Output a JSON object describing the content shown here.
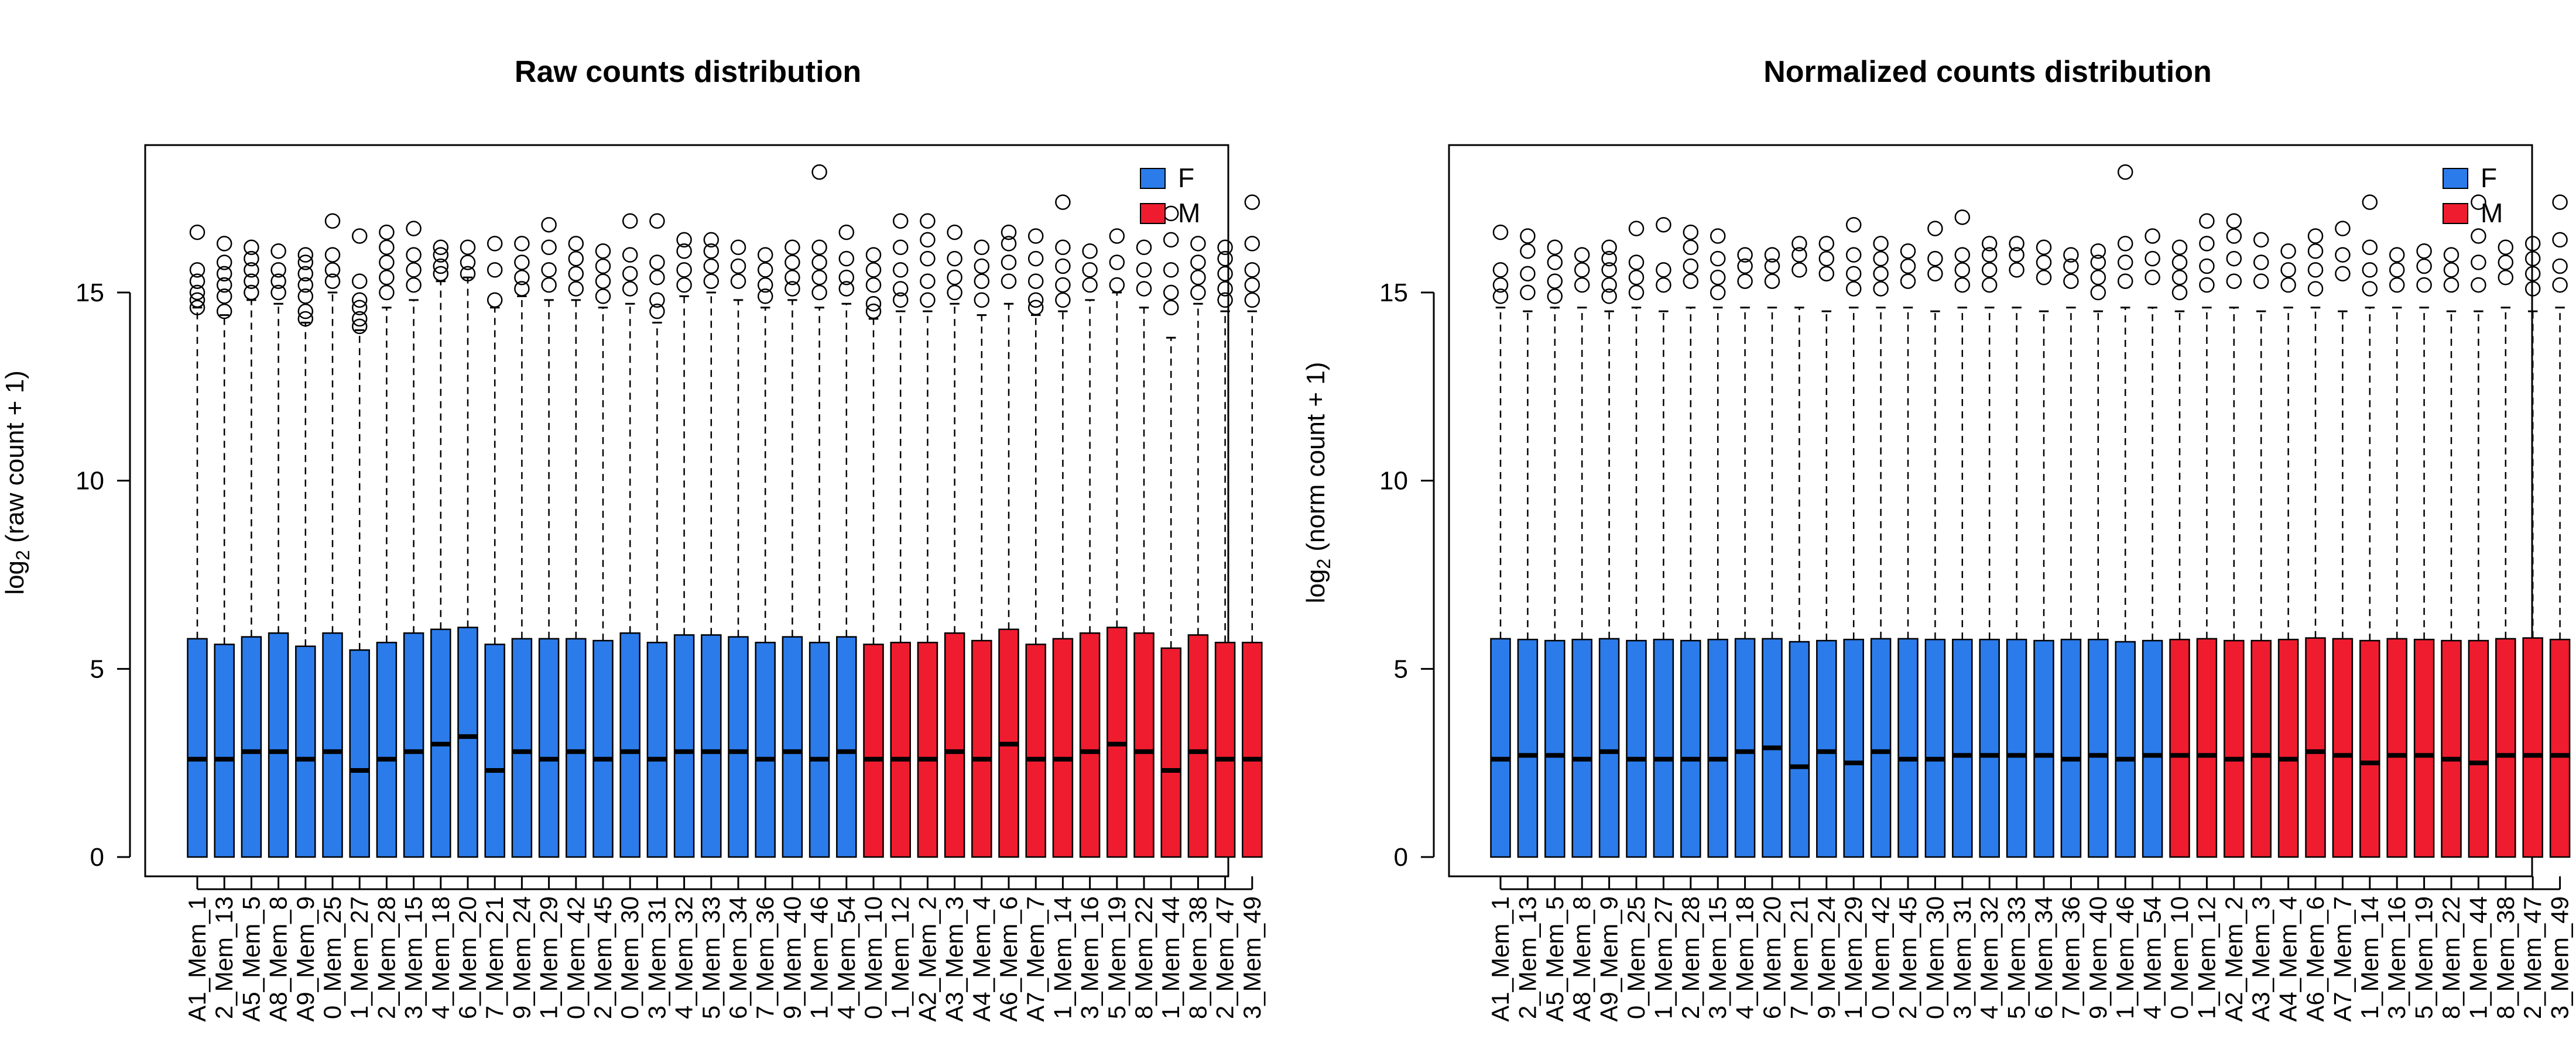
{
  "figure": {
    "panels": 2,
    "groups": [
      {
        "name": "F",
        "color": "#2b7bea"
      },
      {
        "name": "M",
        "color": "#ee1c2e"
      }
    ]
  },
  "chart_data": [
    {
      "type": "box",
      "title": "Raw counts distribution",
      "ylabel": "log2 (raw count + 1)",
      "ylabel_base": "log",
      "ylabel_sub": "2",
      "ylabel_rest": " (raw count + 1)",
      "ylim": [
        0,
        18.7
      ],
      "yticks": [
        0,
        5,
        10,
        15
      ],
      "grid": false,
      "legend": {
        "position": "top-right",
        "entries": [
          "F",
          "M"
        ]
      },
      "categories": [
        "A1_Mem_1",
        "2_Mem_13",
        "A5_Mem_5",
        "A8_Mem_8",
        "A9_Mem_9",
        "0_Mem_25",
        "1_Mem_27",
        "2_Mem_28",
        "3_Mem_15",
        "4_Mem_18",
        "6_Mem_20",
        "7_Mem_21",
        "9_Mem_24",
        "1_Mem_29",
        "0_Mem_42",
        "2_Mem_45",
        "0_Mem_30",
        "3_Mem_31",
        "4_Mem_32",
        "5_Mem_33",
        "6_Mem_34",
        "7_Mem_36",
        "9_Mem_40",
        "1_Mem_46",
        "4_Mem_54",
        "0_Mem_10",
        "1_Mem_12",
        "A2_Mem_2",
        "A3_Mem_3",
        "A4_Mem_4",
        "A6_Mem_6",
        "A7_Mem_7",
        "1_Mem_14",
        "3_Mem_16",
        "5_Mem_19",
        "8_Mem_22",
        "1_Mem_44",
        "8_Mem_38",
        "2_Mem_47",
        "3_Mem_49"
      ],
      "groups": [
        "F",
        "F",
        "F",
        "F",
        "F",
        "F",
        "F",
        "F",
        "F",
        "F",
        "F",
        "F",
        "F",
        "F",
        "F",
        "F",
        "F",
        "F",
        "F",
        "F",
        "F",
        "F",
        "F",
        "F",
        "F",
        "M",
        "M",
        "M",
        "M",
        "M",
        "M",
        "M",
        "M",
        "M",
        "M",
        "M",
        "M",
        "M",
        "M",
        "M"
      ],
      "whisker_low": [
        0,
        0,
        0,
        0,
        0,
        0,
        0,
        0,
        0,
        0,
        0,
        0,
        0,
        0,
        0,
        0,
        0,
        0,
        0,
        0,
        0,
        0,
        0,
        0,
        0,
        0,
        0,
        0,
        0,
        0,
        0,
        0,
        0,
        0,
        0,
        0,
        0,
        0,
        0,
        0
      ],
      "q1": [
        0,
        0,
        0,
        0,
        0,
        0,
        0,
        0,
        0,
        0,
        0,
        0,
        0,
        0,
        0,
        0,
        0,
        0,
        0,
        0,
        0,
        0,
        0,
        0,
        0,
        0,
        0,
        0,
        0,
        0,
        0,
        0,
        0,
        0,
        0,
        0,
        0,
        0,
        0,
        0
      ],
      "median": [
        2.6,
        2.6,
        2.8,
        2.8,
        2.6,
        2.8,
        2.3,
        2.6,
        2.8,
        3.0,
        3.2,
        2.3,
        2.8,
        2.6,
        2.8,
        2.6,
        2.8,
        2.6,
        2.8,
        2.8,
        2.8,
        2.6,
        2.8,
        2.6,
        2.8,
        2.6,
        2.6,
        2.6,
        2.8,
        2.6,
        3.0,
        2.6,
        2.6,
        2.8,
        3.0,
        2.8,
        2.3,
        2.8,
        2.6,
        2.6
      ],
      "q3": [
        5.8,
        5.65,
        5.85,
        5.95,
        5.6,
        5.95,
        5.5,
        5.7,
        5.95,
        6.05,
        6.1,
        5.65,
        5.8,
        5.8,
        5.8,
        5.75,
        5.95,
        5.7,
        5.9,
        5.9,
        5.85,
        5.7,
        5.85,
        5.7,
        5.85,
        5.65,
        5.7,
        5.7,
        5.95,
        5.75,
        6.05,
        5.65,
        5.8,
        5.95,
        6.1,
        5.95,
        5.55,
        5.9,
        5.7,
        5.7
      ],
      "whisker_high": [
        14.6,
        14.4,
        14.8,
        14.7,
        14.2,
        15.0,
        14.0,
        14.6,
        14.8,
        15.3,
        15.4,
        14.6,
        14.9,
        14.8,
        14.8,
        14.6,
        14.7,
        14.2,
        14.9,
        15.0,
        14.8,
        14.6,
        14.8,
        14.6,
        14.7,
        14.3,
        14.5,
        14.5,
        14.7,
        14.4,
        14.7,
        14.4,
        14.5,
        14.8,
        15.0,
        14.6,
        13.8,
        14.7,
        14.5,
        14.5
      ],
      "outliers": [
        [
          16.6,
          15.6,
          15.3,
          15.0,
          14.8,
          14.6
        ],
        [
          16.3,
          15.8,
          15.5,
          15.2,
          14.9,
          14.5
        ],
        [
          16.2,
          15.9,
          15.6,
          15.3,
          15.0
        ],
        [
          16.1,
          15.6,
          15.3,
          15.0
        ],
        [
          16.0,
          15.8,
          15.5,
          15.2,
          14.9,
          14.5,
          14.3
        ],
        [
          16.9,
          16.0,
          15.6,
          15.3
        ],
        [
          16.5,
          15.3,
          14.8,
          14.6,
          14.3,
          14.1
        ],
        [
          16.6,
          16.2,
          15.8,
          15.4,
          15.0
        ],
        [
          16.7,
          16.0,
          15.6,
          15.2
        ],
        [
          16.2,
          16.0,
          15.7,
          15.5
        ],
        [
          16.2,
          15.8,
          15.5
        ],
        [
          16.3,
          15.6,
          14.8
        ],
        [
          16.3,
          15.8,
          15.4,
          15.1
        ],
        [
          16.8,
          16.2,
          15.6,
          15.2
        ],
        [
          16.3,
          15.9,
          15.5,
          15.1
        ],
        [
          16.1,
          15.7,
          15.3,
          14.9
        ],
        [
          16.9,
          16.0,
          15.5,
          15.1
        ],
        [
          16.9,
          15.8,
          15.4,
          14.8,
          14.5
        ],
        [
          16.4,
          16.1,
          15.6,
          15.2
        ],
        [
          16.4,
          16.1,
          15.7,
          15.3
        ],
        [
          16.2,
          15.7,
          15.3
        ],
        [
          16.0,
          15.6,
          15.2,
          14.9
        ],
        [
          16.2,
          15.8,
          15.4,
          15.1
        ],
        [
          18.2,
          16.2,
          15.8,
          15.4,
          15.0
        ],
        [
          16.6,
          15.9,
          15.4,
          15.1
        ],
        [
          16.0,
          15.6,
          15.2,
          14.7,
          14.5
        ],
        [
          16.9,
          16.2,
          15.6,
          15.1,
          14.8
        ],
        [
          16.9,
          16.4,
          15.9,
          15.3,
          14.8
        ],
        [
          16.6,
          15.9,
          15.4,
          15.0
        ],
        [
          16.2,
          15.7,
          15.3,
          14.8
        ],
        [
          16.6,
          16.3,
          15.8,
          15.3
        ],
        [
          16.5,
          15.9,
          15.3,
          14.8,
          14.6
        ],
        [
          17.4,
          16.2,
          15.7,
          15.2,
          14.8
        ],
        [
          16.1,
          15.6,
          15.2
        ],
        [
          16.5,
          15.8,
          15.2
        ],
        [
          16.2,
          15.6,
          15.1
        ],
        [
          17.1,
          16.4,
          15.6,
          15.0,
          14.6
        ],
        [
          16.3,
          15.8,
          15.4,
          15.0
        ],
        [
          16.2,
          15.9,
          15.5,
          15.1,
          14.8
        ],
        [
          17.4,
          16.3,
          15.6,
          15.2,
          14.8
        ]
      ]
    },
    {
      "type": "box",
      "title": "Normalized counts distribution",
      "ylabel": "log2 (norm count + 1)",
      "ylabel_base": "log",
      "ylabel_sub": "2",
      "ylabel_rest": " (norm count + 1)",
      "ylim": [
        0,
        18.7
      ],
      "yticks": [
        0,
        5,
        10,
        15
      ],
      "grid": false,
      "legend": {
        "position": "top-right",
        "entries": [
          "F",
          "M"
        ]
      },
      "categories": [
        "A1_Mem_1",
        "2_Mem_13",
        "A5_Mem_5",
        "A8_Mem_8",
        "A9_Mem_9",
        "0_Mem_25",
        "1_Mem_27",
        "2_Mem_28",
        "3_Mem_15",
        "4_Mem_18",
        "6_Mem_20",
        "7_Mem_21",
        "9_Mem_24",
        "1_Mem_29",
        "0_Mem_42",
        "2_Mem_45",
        "0_Mem_30",
        "3_Mem_31",
        "4_Mem_32",
        "5_Mem_33",
        "6_Mem_34",
        "7_Mem_36",
        "9_Mem_40",
        "1_Mem_46",
        "4_Mem_54",
        "0_Mem_10",
        "1_Mem_12",
        "A2_Mem_2",
        "A3_Mem_3",
        "A4_Mem_4",
        "A6_Mem_6",
        "A7_Mem_7",
        "1_Mem_14",
        "3_Mem_16",
        "5_Mem_19",
        "8_Mem_22",
        "1_Mem_44",
        "8_Mem_38",
        "2_Mem_47",
        "3_Mem_49"
      ],
      "groups": [
        "F",
        "F",
        "F",
        "F",
        "F",
        "F",
        "F",
        "F",
        "F",
        "F",
        "F",
        "F",
        "F",
        "F",
        "F",
        "F",
        "F",
        "F",
        "F",
        "F",
        "F",
        "F",
        "F",
        "F",
        "F",
        "M",
        "M",
        "M",
        "M",
        "M",
        "M",
        "M",
        "M",
        "M",
        "M",
        "M",
        "M",
        "M",
        "M",
        "M"
      ],
      "whisker_low": [
        0,
        0,
        0,
        0,
        0,
        0,
        0,
        0,
        0,
        0,
        0,
        0,
        0,
        0,
        0,
        0,
        0,
        0,
        0,
        0,
        0,
        0,
        0,
        0,
        0,
        0,
        0,
        0,
        0,
        0,
        0,
        0,
        0,
        0,
        0,
        0,
        0,
        0,
        0,
        0
      ],
      "q1": [
        0,
        0,
        0,
        0,
        0,
        0,
        0,
        0,
        0,
        0,
        0,
        0,
        0,
        0,
        0,
        0,
        0,
        0,
        0,
        0,
        0,
        0,
        0,
        0,
        0,
        0,
        0,
        0,
        0,
        0,
        0,
        0,
        0,
        0,
        0,
        0,
        0,
        0,
        0,
        0
      ],
      "median": [
        2.6,
        2.7,
        2.7,
        2.6,
        2.8,
        2.6,
        2.6,
        2.6,
        2.6,
        2.8,
        2.9,
        2.4,
        2.8,
        2.5,
        2.8,
        2.6,
        2.6,
        2.7,
        2.7,
        2.7,
        2.7,
        2.6,
        2.7,
        2.6,
        2.7,
        2.7,
        2.7,
        2.6,
        2.7,
        2.6,
        2.8,
        2.7,
        2.5,
        2.7,
        2.7,
        2.6,
        2.5,
        2.7,
        2.7,
        2.7
      ],
      "q3": [
        5.8,
        5.78,
        5.75,
        5.78,
        5.8,
        5.75,
        5.78,
        5.75,
        5.78,
        5.8,
        5.8,
        5.72,
        5.75,
        5.78,
        5.8,
        5.8,
        5.78,
        5.78,
        5.78,
        5.78,
        5.75,
        5.78,
        5.78,
        5.72,
        5.75,
        5.78,
        5.8,
        5.75,
        5.75,
        5.78,
        5.82,
        5.8,
        5.75,
        5.8,
        5.78,
        5.75,
        5.75,
        5.8,
        5.82,
        5.78
      ],
      "whisker_high": [
        14.6,
        14.5,
        14.6,
        14.6,
        14.5,
        14.6,
        14.5,
        14.6,
        14.6,
        14.6,
        14.6,
        14.6,
        14.5,
        14.6,
        14.6,
        14.6,
        14.5,
        14.6,
        14.6,
        14.6,
        14.5,
        14.6,
        14.5,
        14.6,
        14.6,
        14.5,
        14.6,
        14.6,
        14.5,
        14.6,
        14.6,
        14.5,
        14.6,
        14.6,
        14.6,
        14.5,
        14.5,
        14.6,
        14.5,
        14.6
      ],
      "outliers": [
        [
          16.6,
          15.6,
          15.2,
          14.9
        ],
        [
          16.5,
          16.1,
          15.5,
          15.0
        ],
        [
          16.2,
          15.8,
          15.3,
          14.9
        ],
        [
          16.0,
          15.6,
          15.2
        ],
        [
          16.2,
          15.9,
          15.6,
          15.2,
          14.9
        ],
        [
          16.7,
          15.8,
          15.4,
          15.0
        ],
        [
          16.8,
          15.6,
          15.2
        ],
        [
          16.6,
          16.2,
          15.7,
          15.3
        ],
        [
          16.5,
          15.9,
          15.4,
          15.0
        ],
        [
          16.0,
          15.7,
          15.3
        ],
        [
          16.0,
          15.7,
          15.3
        ],
        [
          16.3,
          16.0,
          15.6
        ],
        [
          16.3,
          15.9,
          15.5
        ],
        [
          16.8,
          16.0,
          15.5,
          15.1
        ],
        [
          16.3,
          15.9,
          15.5,
          15.1
        ],
        [
          16.1,
          15.7,
          15.3
        ],
        [
          16.7,
          15.9,
          15.5
        ],
        [
          17.0,
          16.0,
          15.6,
          15.2
        ],
        [
          16.3,
          16.0,
          15.6,
          15.2
        ],
        [
          16.3,
          16.0,
          15.6
        ],
        [
          16.2,
          15.8,
          15.4
        ],
        [
          16.0,
          15.7,
          15.3
        ],
        [
          16.1,
          15.8,
          15.4,
          15.0
        ],
        [
          18.2,
          16.3,
          15.8,
          15.3
        ],
        [
          16.5,
          15.9,
          15.4
        ],
        [
          16.2,
          15.8,
          15.4,
          15.0
        ],
        [
          16.9,
          16.3,
          15.7,
          15.2
        ],
        [
          16.9,
          16.5,
          15.9,
          15.3
        ],
        [
          16.4,
          15.8,
          15.3
        ],
        [
          16.1,
          15.6,
          15.2
        ],
        [
          16.5,
          16.1,
          15.6,
          15.1
        ],
        [
          16.7,
          16.0,
          15.5
        ],
        [
          17.4,
          16.2,
          15.6,
          15.1
        ],
        [
          16.0,
          15.6,
          15.2
        ],
        [
          16.1,
          15.7,
          15.2
        ],
        [
          16.0,
          15.6,
          15.2
        ],
        [
          17.4,
          16.5,
          15.8,
          15.2
        ],
        [
          16.2,
          15.8,
          15.4
        ],
        [
          16.3,
          15.9,
          15.5,
          15.1
        ],
        [
          17.4,
          16.4,
          15.7,
          15.2
        ]
      ]
    }
  ]
}
